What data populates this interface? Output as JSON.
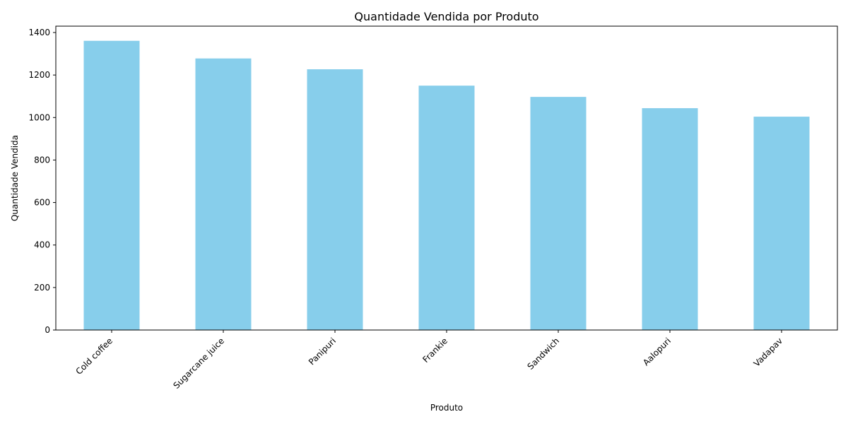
{
  "chart_data": {
    "type": "bar",
    "title": "Quantidade Vendida por Produto",
    "xlabel": "Produto",
    "ylabel": "Quantidade Vendida",
    "categories": [
      "Cold coffee",
      "Sugarcane juice",
      "Panipuri",
      "Frankie",
      "Sandwich",
      "Aalopuri",
      "Vadapav"
    ],
    "values": [
      1361,
      1278,
      1227,
      1150,
      1097,
      1044,
      1004
    ],
    "ylim": [
      0,
      1430
    ],
    "yticks": [
      0,
      200,
      400,
      600,
      800,
      1000,
      1200,
      1400
    ],
    "grid": false,
    "bar_color": "#87CEEB",
    "axis_color": "#000000"
  }
}
